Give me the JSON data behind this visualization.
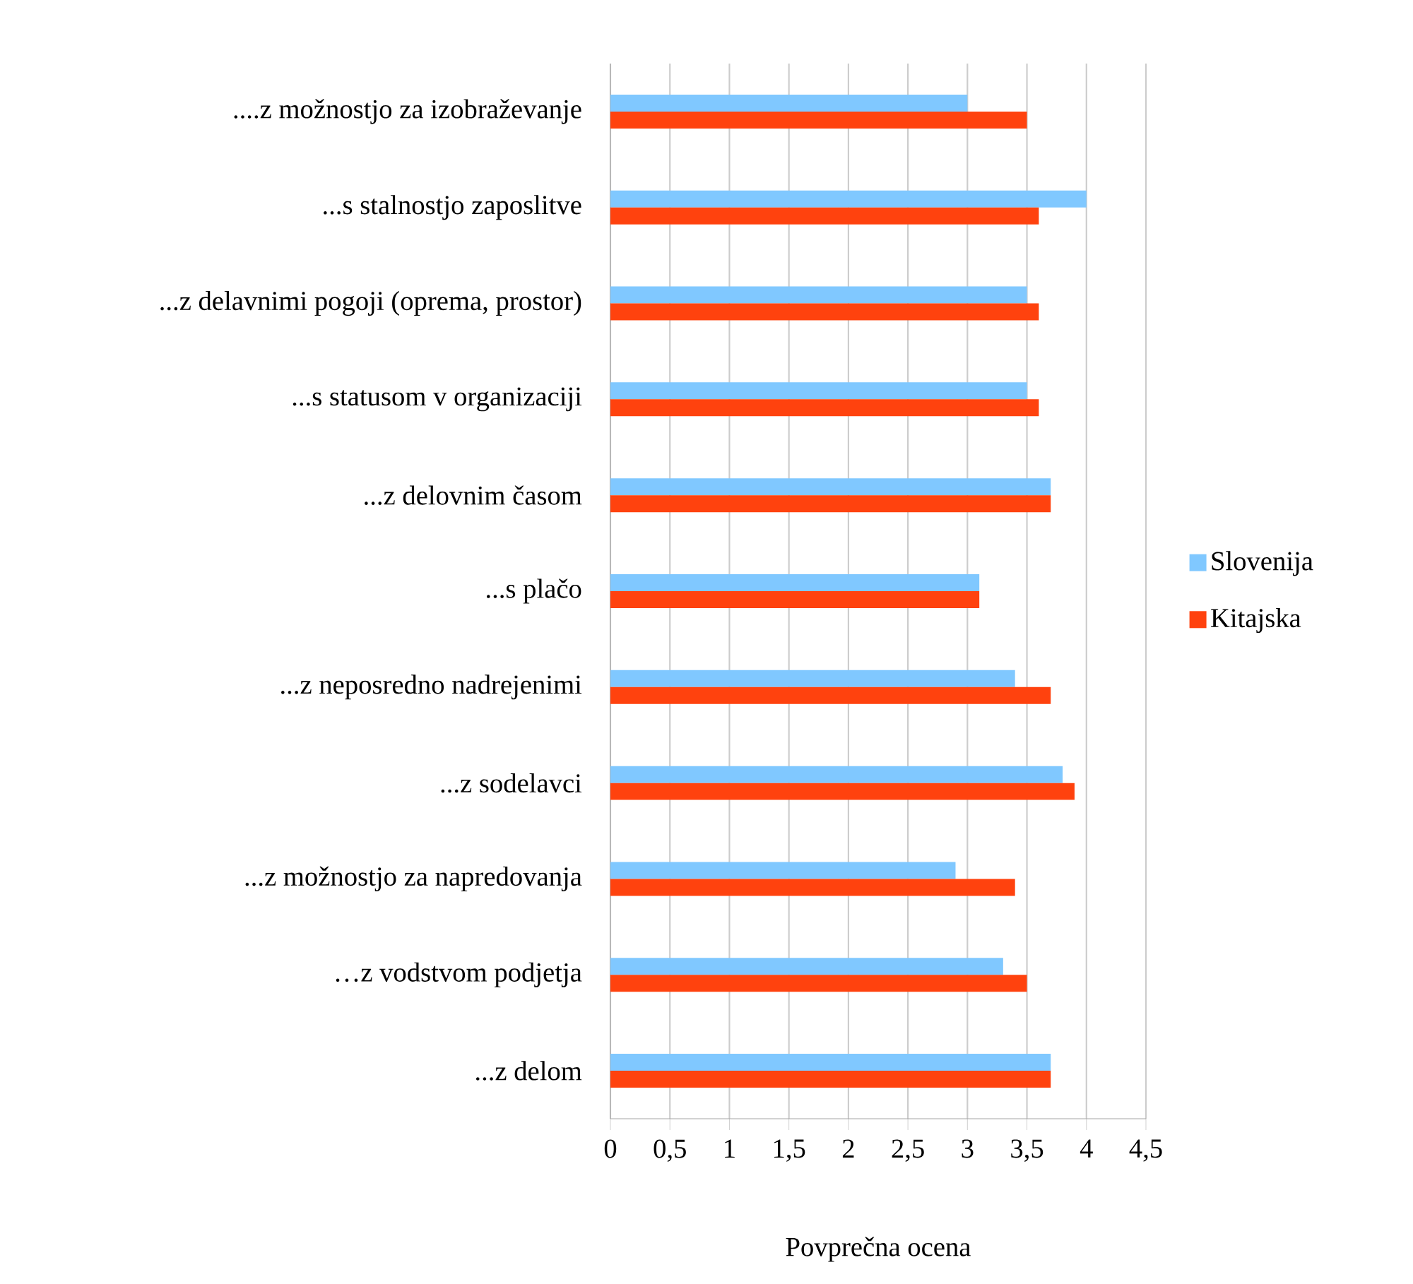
{
  "chart_data": {
    "type": "bar",
    "orientation": "horizontal",
    "xlabel": "Povprečna ocena",
    "categories": [
      "....z  možnostjo za izobraževanje",
      "...s stalnostjo zaposlitve",
      "...z  delavnimi pogoji (oprema, prostor)",
      "...s statusom v organizaciji",
      "...z  delovnim časom",
      "...s plačo",
      "...z  neposredno nadrejenimi",
      "...z  sodelavci",
      "...z   možnostjo za napredovanja",
      "…z  vodstvom podjetja",
      "...z  delom"
    ],
    "series": [
      {
        "name": "Slovenija",
        "color": "#80c8ff",
        "values": [
          3.0,
          4.0,
          3.5,
          3.5,
          3.7,
          3.1,
          3.4,
          3.8,
          2.9,
          3.3,
          3.7
        ]
      },
      {
        "name": "Kitajska",
        "color": "#ff420e",
        "values": [
          3.5,
          3.6,
          3.6,
          3.6,
          3.7,
          3.1,
          3.7,
          3.9,
          3.4,
          3.5,
          3.7
        ]
      }
    ],
    "xlim": [
      0,
      4.5
    ],
    "xticks": [
      0,
      {
        "value": 0.5,
        "label": "0,5"
      },
      1,
      {
        "value": 1.5,
        "label": "1,5"
      },
      2,
      {
        "value": 2.5,
        "label": "2,5"
      },
      3,
      {
        "value": 3.5,
        "label": "3,5"
      },
      4,
      {
        "value": 4.5,
        "label": "4,5"
      }
    ],
    "grid": "x",
    "legend": "right"
  }
}
